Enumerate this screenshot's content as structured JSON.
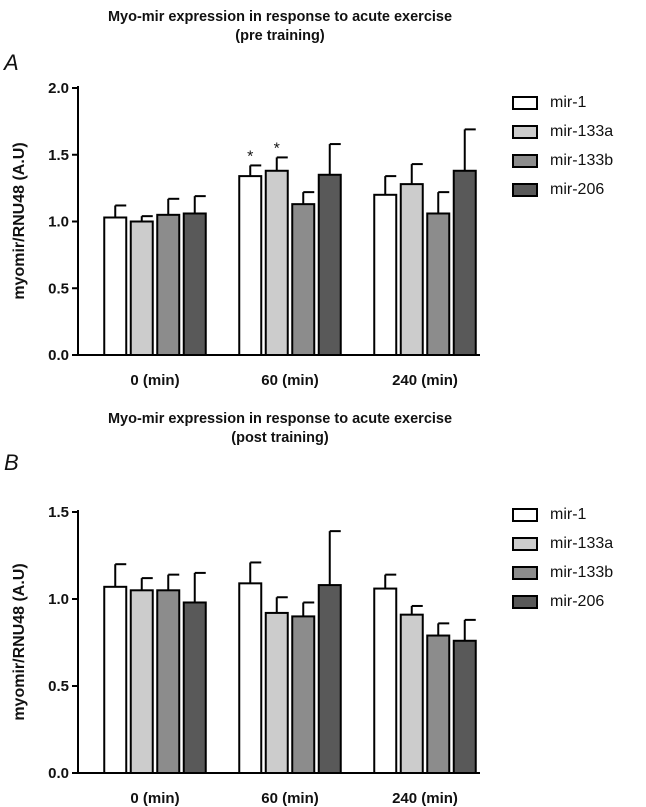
{
  "chart_data": [
    {
      "type": "bar",
      "panel": "A",
      "title": "Myo-mir expression in response to acute exercise",
      "subtitle": "(pre training)",
      "xlabel": "",
      "ylabel": "myomir/RNU48 (A.U)",
      "ylim": [
        0,
        2.0
      ],
      "yticks": [
        "0.0",
        "0.5",
        "1.0",
        "1.5",
        "2.0"
      ],
      "categories": [
        "0 (min)",
        "60 (min)",
        "240 (min)"
      ],
      "series": [
        {
          "name": "mir-1",
          "color": "#ffffff",
          "values": [
            1.03,
            1.34,
            1.2
          ],
          "errors": [
            0.09,
            0.08,
            0.14
          ],
          "significance": [
            "",
            "*",
            ""
          ]
        },
        {
          "name": "mir-133a",
          "color": "#cccccc",
          "values": [
            1.0,
            1.38,
            1.28
          ],
          "errors": [
            0.04,
            0.1,
            0.15
          ],
          "significance": [
            "",
            "*",
            ""
          ]
        },
        {
          "name": "mir-133b",
          "color": "#8c8c8c",
          "values": [
            1.05,
            1.13,
            1.06
          ],
          "errors": [
            0.12,
            0.09,
            0.16
          ],
          "significance": [
            "",
            "",
            ""
          ]
        },
        {
          "name": "mir-206",
          "color": "#595959",
          "values": [
            1.06,
            1.35,
            1.38
          ],
          "errors": [
            0.13,
            0.23,
            0.31
          ],
          "significance": [
            "",
            "",
            ""
          ]
        }
      ],
      "legend_position": "top-right",
      "grid": false
    },
    {
      "type": "bar",
      "panel": "B",
      "title": "Myo-mir expression in response to acute exercise",
      "subtitle": "(post training)",
      "xlabel": "",
      "ylabel": "myomir/RNU48 (A.U)",
      "ylim": [
        0,
        1.5
      ],
      "yticks": [
        "0.0",
        "0.5",
        "1.0",
        "1.5"
      ],
      "categories": [
        "0 (min)",
        "60 (min)",
        "240 (min)"
      ],
      "series": [
        {
          "name": "mir-1",
          "color": "#ffffff",
          "values": [
            1.07,
            1.09,
            1.06
          ],
          "errors": [
            0.13,
            0.12,
            0.08
          ],
          "significance": [
            "",
            "",
            ""
          ]
        },
        {
          "name": "mir-133a",
          "color": "#cccccc",
          "values": [
            1.05,
            0.92,
            0.91
          ],
          "errors": [
            0.07,
            0.09,
            0.05
          ],
          "significance": [
            "",
            "",
            ""
          ]
        },
        {
          "name": "mir-133b",
          "color": "#8c8c8c",
          "values": [
            1.05,
            0.9,
            0.79
          ],
          "errors": [
            0.09,
            0.08,
            0.07
          ],
          "significance": [
            "",
            "",
            ""
          ]
        },
        {
          "name": "mir-206",
          "color": "#595959",
          "values": [
            0.98,
            1.08,
            0.76
          ],
          "errors": [
            0.17,
            0.31,
            0.12
          ],
          "significance": [
            "",
            "",
            ""
          ]
        }
      ],
      "legend_position": "top-right",
      "grid": false
    }
  ]
}
